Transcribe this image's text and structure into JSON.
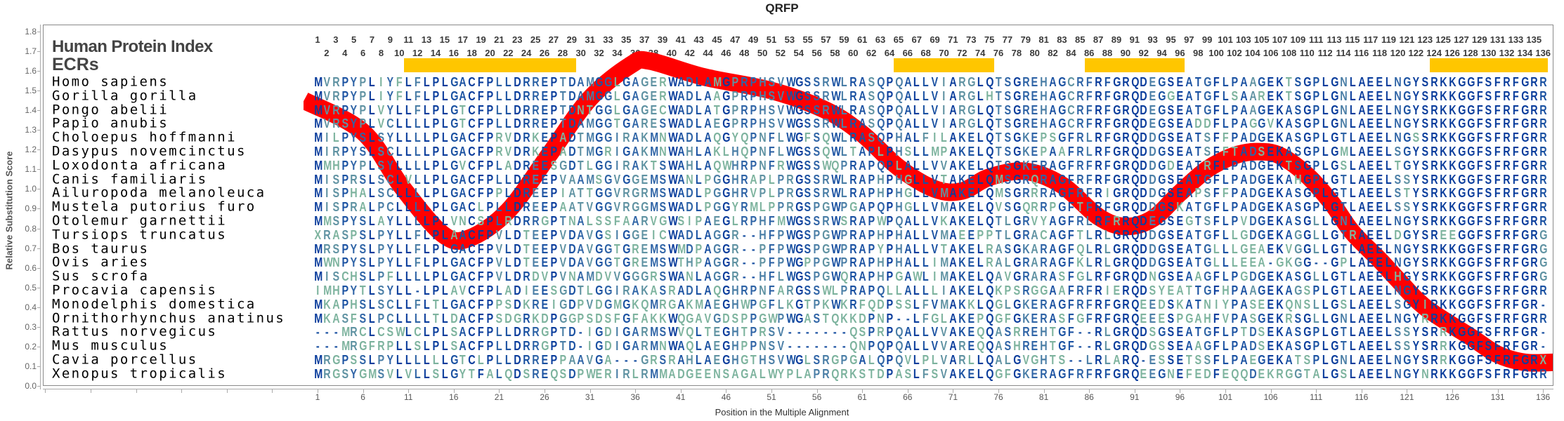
{
  "title": "QRFP",
  "header": {
    "protein_index_label": "Human Protein Index",
    "ecr_label": "ECRs"
  },
  "y_axis": {
    "label": "Relative Substitution Score",
    "ticks": [
      "1.8",
      "1.7",
      "1.6",
      "1.5",
      "1.4",
      "1.3",
      "1.2",
      "1.1",
      "1.0",
      "0.9",
      "0.8",
      "0.7",
      "0.6",
      "0.5",
      "0.4",
      "0.3",
      "0.2",
      "0.1",
      "0.0"
    ]
  },
  "x_axis": {
    "label": "Position in the Multiple Alignment",
    "ticks": [
      "1",
      "6",
      "11",
      "16",
      "21",
      "26",
      "31",
      "36",
      "41",
      "46",
      "51",
      "56",
      "61",
      "66",
      "71",
      "76",
      "81",
      "86",
      "91",
      "96",
      "101",
      "106",
      "111",
      "116",
      "121",
      "126",
      "131",
      "136"
    ]
  },
  "alignment_length": 136,
  "ecrs": [
    {
      "start": 11,
      "end": 29
    },
    {
      "start": 65,
      "end": 75
    },
    {
      "start": 86,
      "end": 96
    },
    {
      "start": 124,
      "end": 136
    }
  ],
  "colors": {
    "ecr": "#ffc600",
    "curve": "#ff0000",
    "conservation_scale": [
      "#0a3d9c",
      "#1b52a2",
      "#2f64a6",
      "#4a7ea6",
      "#5f92a2",
      "#7db39e"
    ]
  },
  "species": [
    {
      "name": "Homo sapiens",
      "seq": "MVRPYPLIYFLFLPLGACFPLLDRREPTDAMGGLGAGERWADLAMGPRPHSVWGSSRWLRASQPQALLVIARGLQTSGREHAGCRFRFGRQDEGSEATGFLPAAGEKTSGPLGNLAEELNGYSRKKGGFSFRFGRR"
    },
    {
      "name": "Gorilla gorilla",
      "seq": "MVRPYPLIYFLFLPLGACFPLLDRREPTDAMGGLGAGERWADLAAGPRPHSVWGSSRWLRASQPQALLVIARGLHTSGREHAGCRFRFGRQDEGGEATGFLSAAREKTSGPLGNLAEELNGYSRKKGGFSFRFGRR"
    },
    {
      "name": "Pongo abelii",
      "seq": "MVRPYPLVYLLFLPLGTCFPLLDRREPTDNTGGLGAGECWADLATGPRPHSVWGSSRWLRASQPQALLVIARGLQTSGREHAGCRFRFGRQDEGSEATGFLPAAGEKASGPLGNLAEELNGYSRKKGGFSFRFGRR"
    },
    {
      "name": "Papio anubis",
      "seq": "MVRSYPLVCLLLLPLGTCFPLLDRREPTDAMGGTGARESWADLAEGPRPHSVWGSSRWLRASQPQALLVIARGLQTSGREHAGCRFRFGRQDEGSEADDFLPAGGVKASGPLGNLAEELNGYSRKKGGFSFRFGRR"
    },
    {
      "name": "Choloepus hoffmanni",
      "seq": "MILPYSLSYLLLLPLGACFPRVDRKEPADTMGGIRAKMNWADLAQGYQPNFLWGFSQWLRASQPHALFILAKELQTSGKEPSGFRLRFGRQDDGSEATSFFPADGEKASGPLGTLAEELNGSSRKKGGFSFRFGRR"
    },
    {
      "name": "Dasypus novemcinctus",
      "seq": "MIRPYSLSCLLLLPLGACFPRVDRKEPADTMGRIGAKMNWAHLAKLHQPNFLWGSSQWLTAPLPHSLLMPAKELQTSGKEPAAFRLRFGRQDDGSEATSFFTADSEKASGPLGMLAEELSGYSRKKGGFSFRFGRR"
    },
    {
      "name": "Loxodonta africana",
      "seq": "MMHPYPLSYLLLLPLGVCFPLADREESGDTLGGIRAKTSWAHLAQWHRPNFRWGSSWQPRAPQPLALLVVAKELQTSGKERAGFRFRFGRQDDGDEATRFLPADGEKTSGPLGSLAEELTGYSRKKGGFSFRFGRR"
    },
    {
      "name": "Canis familiaris",
      "seq": "MISPRSLSCLVLLPLGACFPLLDREEPVAAMSGVGGEMSWANLPGGHRAPLPRGSSRWLRAPHPHGLLVTAKELQMSGRQRAGFRFRFGRQDDGSEATGFLPADGEKAHGPLGTLAEELSSYSRKKGGFSFRFGRR"
    },
    {
      "name": "Ailuropoda melanoleuca",
      "seq": "MISPHALSCLLLLPLGACFPPLDREEPIATTGGVRGRMSWADLPGGHRVPLPRGSSRWLRAPHPHGLLVMAKELQMSGRRRAGFRFRIGRQDDGSEAPSFFPADGEKASGPLGTLAEELSTYSRKKGGFSFRFGRR"
    },
    {
      "name": "Mustela putorius furo",
      "seq": "MISPRALPCLLLLPLGACLPLLDREEPAATVGGVRGGMSWADLPGGYRMLPPRGSPGWPGAPQPHGLLVMAKELQVSGQRRPGFTFRFGRQDDGSKATGFLPADGEKASGPLGTLAEELSSYSRKKGGFSFRFGRR"
    },
    {
      "name": "Otolemur garnettii",
      "seq": "MMSPYSLAYLLLLPLVNCSPLRDRRGPTNALSSFAARVGWSIPAEGLRPHFMWGSSRWSRAPWPQALLVKAKELQTLGRVYAGFRLRFRRQDEGSEGTSFLPVDGEKASGLLGNLAEELNGYSRKKGGFSFRFGRR"
    },
    {
      "name": "Tursiops truncatus",
      "seq": "XRASPSLPYLLFLPLAACFPVLDTEEPVDAVGSIGGEICWADLAGGR--HFPWGSPGWPRAPHPHALLVMAEEPPTLGRACAGFTLRLGRQDDGSEATGFLLGDGEKAGGLLGTRAEELDGYSREEGGFSFRFGRG"
    },
    {
      "name": "Bos taurus",
      "seq": "MRSPYSLPYLLFLPLGACFPVLDTEEPVDAVGGTGREMSWMDPAGGR--PFPWGSPGWPRAPYPHALLVTAKELRASGKARAGFQLRLGRQDDGSEATGLLLGEAEKVGGLLGTLAEELNGYSRKKGGFSFRFGRG"
    },
    {
      "name": "Ovis aries",
      "seq": "MWNPYSLPYLLFLPLGACFPVLDTEEPVDAVGGTGREMSWTHPAGGR--PFPWGPPGWPRAPHPHALLIMAKELRALGRARAGFKLRLGRQDDGSEATGLLLEEA-GKGG--GPLAEELNGYSRKKGGFSFRFGRG"
    },
    {
      "name": "Sus scrofa",
      "seq": "MISCHSLPFLLLLPLGACFPVLDRDVPVNAMDVVGGGRSWANLAGGR--HFLWGSPGWQRAPHPGAWLIMAKELQAVGRARASFGLRFGRQDNGSEAAGFLPGDGEKASGLLGTLAEELHGYSRKKGGFSFRFGRG"
    },
    {
      "name": "Procavia capensis",
      "seq": "IMHPYTLSYLL-LPLAVCFPLADIEESGDTLGGIRAKASRADLAQGHRPNFARGSSWLPRAPQLLALLLIAKELQKPSRGGAAFRFRIERQDSYEATTGFHPAAGEKAGSPLGTLAEELNGYSRKKGGFSFRFGRR"
    },
    {
      "name": "Monodelphis domestica",
      "seq": "MKAPHSLSCLLFLTLGACFPPSDKREIGDPVDGMGKQMRGAKMAEGHWPGFLKGTPKWKRFQDPSSLFVMAKKLQGLGKERAGFRFRFGRQEEDSKATNIYPASEEKQNSLLGSLAEELSGYIRKKGGFSFRFGR-"
    },
    {
      "name": "Ornithorhynchus anatinus",
      "seq": "MKASFSLPCLLLLTLDACFPSDGRKDPGGPSDSFGFAKKWQGAVGDSPPGWPWGASTQKKDPNP--LFGLAKEPQGFGKERASFGFRFGRQEEESPGAHFVPASGEKRSGLLGNLAEELNGYRRKKGGFSFRFGRR"
    },
    {
      "name": "Rattus norvegicus",
      "seq": "---MRCLCSWLCLPLSACFPLLDRRGPTD-IGDIGARMSWVQLTEGHTPRSV-------QSPRPQALLVVAKEQQASRREHTGF--RLGRQDSGSEATGFLPTDSEKASGPLGTLAEELSSYSRRKGGFSFRFGR-"
    },
    {
      "name": "Mus musculus",
      "seq": "---MRGFRPLLSLPLSACFPLLDRRGPTD-IGDIGARMNWAQLAEGHPPNSV-------QNPQPQALLVVAREQQASHREHTGF--RLGRQDGSSEAAGFLPADSEKASGPLGTLAEELSSYSRRKGGFSFRFGR-"
    },
    {
      "name": "Cavia porcellus",
      "seq": "MRGPSSLPYLLLLLLGTCLPLLDRREPPAAVGA---GRSRAHLAEGHGTHSVWGLSRGPGALQPQVLPLVARLLQALGVGHTS--LRLARQ-ESSETSSFLPAEGEKATSPLGNLAEELNGYSRRKGGFSFRFGRX"
    },
    {
      "name": "Xenopus tropicalis",
      "seq": "MRGSYGMSVLVLLSLGYTFALQDSREQSDPWERIRLRMMADGEENSAGALWYPLAPRQRKSTDPASLFSVAKELQGFGKERAGFRFRFGRQEEGNEFEDFEQQDEKRGGTALGSLAEELNGYNRKKGGFSFRFGRR"
    }
  ],
  "chart_data": {
    "type": "line",
    "title": "QRFP",
    "xlabel": "Position in the Multiple Alignment",
    "ylabel": "Relative Substitution Score",
    "ylim": [
      0,
      1.8
    ],
    "xlim": [
      1,
      136
    ],
    "grid": false,
    "x": [
      -0.5,
      6,
      10.3,
      14.8,
      17.7,
      22,
      26.6,
      31,
      35.5,
      37.6,
      43.5,
      51,
      57,
      61,
      65,
      69,
      72,
      75,
      79,
      83,
      87,
      90,
      93,
      96,
      99,
      102,
      104.5,
      107,
      110,
      112.7,
      115,
      118,
      120,
      123,
      128,
      131,
      134,
      137.2
    ],
    "y": [
      1.45,
      1.29,
      1.01,
      0.77,
      0.75,
      0.89,
      1.18,
      1.46,
      1.63,
      1.65,
      1.57,
      1.5,
      1.4,
      1.28,
      1.11,
      1.0,
      0.99,
      1.06,
      1.09,
      1.02,
      0.86,
      0.81,
      0.85,
      0.98,
      1.1,
      1.17,
      1.19,
      1.17,
      1.07,
      0.93,
      0.78,
      0.64,
      0.54,
      0.4,
      0.25,
      0.16,
      0.12,
      0.12
    ]
  }
}
